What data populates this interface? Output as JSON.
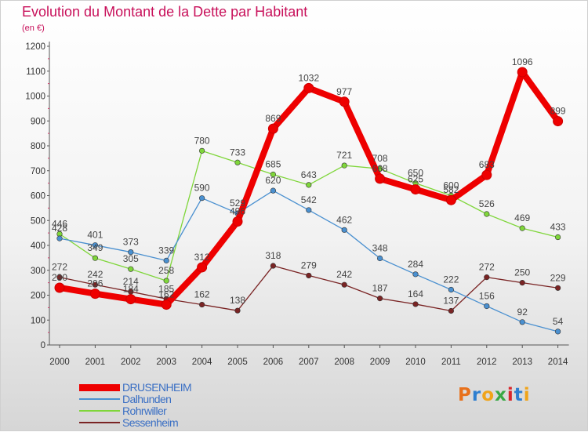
{
  "title": "Evolution du Montant de la Dette par Habitant",
  "unit_label": "(en €)",
  "logo": {
    "text": "Proxiti",
    "colors": [
      "#e8711c",
      "#2e7fd0",
      "#f0a419",
      "#39a845",
      "#d8262c",
      "#2e7fd0",
      "#f0a419"
    ]
  },
  "chart_data": {
    "type": "line",
    "x": [
      "2000",
      "2001",
      "2002",
      "2003",
      "2004",
      "2005",
      "2006",
      "2007",
      "2008",
      "2009",
      "2010",
      "2011",
      "2012",
      "2013",
      "2014"
    ],
    "ylim": [
      0,
      1200
    ],
    "yticks": [
      0,
      100,
      200,
      300,
      400,
      500,
      600,
      700,
      800,
      900,
      1000,
      1100,
      1200
    ],
    "grid": false,
    "legend_position": "bottom-left",
    "series": [
      {
        "name": "DRUSENHEIM",
        "color": "#ee0000",
        "values": [
          230,
          206,
          184,
          162,
          312,
          496,
          869,
          1032,
          977,
          668,
          625,
          582,
          683,
          1096,
          899
        ],
        "labels": [
          "230",
          "206",
          "184",
          "162",
          "312",
          "496",
          "869",
          "1032",
          "977",
          "668",
          "625",
          "582",
          "683",
          "1096",
          "899"
        ]
      },
      {
        "name": "Dalhunden",
        "color": "#4a90d0",
        "values": [
          428,
          401,
          373,
          339,
          590,
          529,
          620,
          542,
          462,
          348,
          284,
          222,
          156,
          92,
          54
        ],
        "labels": [
          "428",
          "401",
          "373",
          "339",
          "590",
          "529",
          "620",
          "542",
          "462",
          "348",
          "284",
          "222",
          "156",
          "92",
          "54"
        ]
      },
      {
        "name": "Rohrwiller",
        "color": "#7fd63a",
        "values": [
          446,
          349,
          305,
          258,
          780,
          733,
          685,
          643,
          721,
          708,
          650,
          600,
          526,
          469,
          433
        ],
        "labels": [
          "446",
          "349",
          "305",
          "258",
          "780",
          "733",
          "685",
          "643",
          "721",
          "708",
          "650",
          "600",
          "526",
          "469",
          "433"
        ]
      },
      {
        "name": "Sessenheim",
        "color": "#7a2424",
        "values": [
          272,
          242,
          214,
          185,
          162,
          138,
          318,
          279,
          242,
          187,
          164,
          137,
          272,
          250,
          229
        ],
        "labels": [
          "272",
          "242",
          "214",
          "185",
          "162",
          "138",
          "318",
          "279",
          "242",
          "187",
          "164",
          "137",
          "272",
          "250",
          "229"
        ]
      }
    ]
  }
}
